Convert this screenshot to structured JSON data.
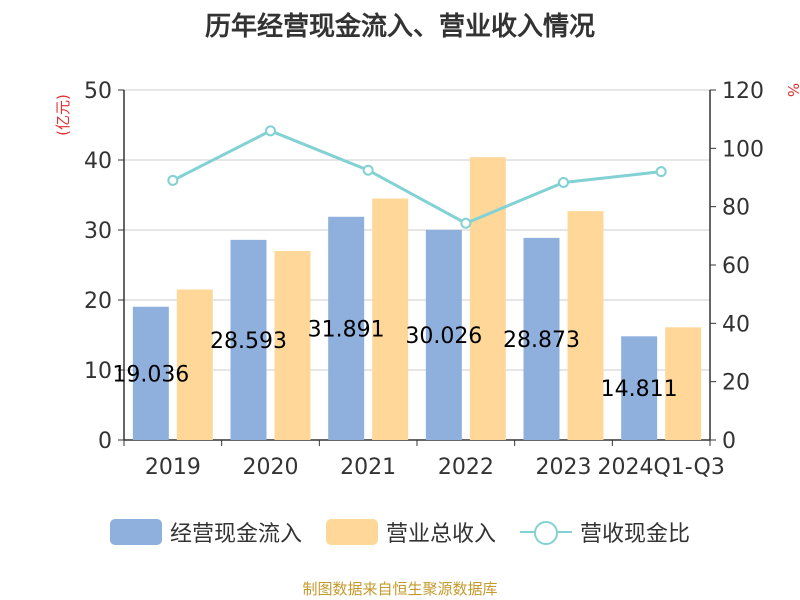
{
  "chart_data": {
    "type": "bar",
    "title": "历年经营现金流入、营业收入情况",
    "categories": [
      "2019",
      "2020",
      "2021",
      "2022",
      "2023",
      "2024Q1-Q3"
    ],
    "series": [
      {
        "name": "经营现金流入",
        "type": "bar",
        "axis": "left",
        "color": "#8fafdc",
        "values": [
          19.036,
          28.593,
          31.891,
          30.026,
          28.873,
          14.811
        ],
        "labels": [
          "19.036",
          "28.593",
          "31.891",
          "30.026",
          "28.873",
          "14.811"
        ]
      },
      {
        "name": "营业总收入",
        "type": "bar",
        "axis": "left",
        "color": "#ffd899",
        "values": [
          21.5,
          27.0,
          34.5,
          40.4,
          32.7,
          16.1
        ]
      },
      {
        "name": "营收现金比",
        "type": "line",
        "axis": "right",
        "color": "#82d1d4",
        "values": [
          89,
          106,
          92.5,
          74.3,
          88.3,
          92
        ]
      }
    ],
    "y_left": {
      "label": "(亿元)",
      "ylim": [
        0,
        50
      ],
      "ticks": [
        "0",
        "10",
        "20",
        "30",
        "40",
        "50"
      ]
    },
    "y_right": {
      "label": "%",
      "ylim": [
        0,
        120
      ],
      "ticks": [
        "0",
        "20",
        "40",
        "60",
        "80",
        "100",
        "120"
      ]
    },
    "grid": true,
    "legend": "bottom",
    "source": "制图数据来自恒生聚源数据库"
  }
}
